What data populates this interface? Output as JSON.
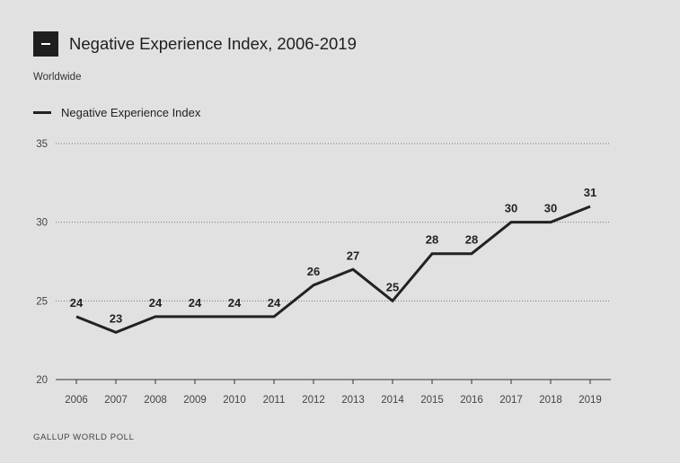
{
  "header": {
    "collapse_icon": "minus-icon",
    "title": "Negative Experience Index, 2006-2019",
    "subtitle": "Worldwide"
  },
  "legend": {
    "label": "Negative Experience Index"
  },
  "footer": {
    "source": "GALLUP WORLD POLL"
  },
  "colors": {
    "line": "#222222",
    "background": "#e1e1e1"
  },
  "chart_data": {
    "type": "line",
    "title": "Negative Experience Index, 2006-2019",
    "subtitle": "Worldwide",
    "categories": [
      "2006",
      "2007",
      "2008",
      "2009",
      "2010",
      "2011",
      "2012",
      "2013",
      "2014",
      "2015",
      "2016",
      "2017",
      "2018",
      "2019"
    ],
    "series": [
      {
        "name": "Negative Experience Index",
        "values": [
          24,
          23,
          24,
          24,
          24,
          24,
          26,
          27,
          25,
          28,
          28,
          30,
          30,
          31
        ]
      }
    ],
    "yticks": [
      20,
      25,
      30,
      35
    ],
    "ylim": [
      20,
      35
    ],
    "grid": true,
    "legend_position": "top-left",
    "data_labels": true
  }
}
